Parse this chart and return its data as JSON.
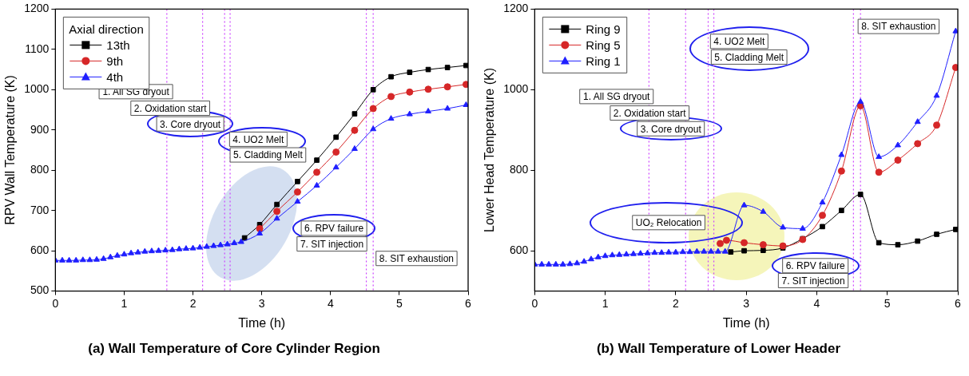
{
  "chart_data": [
    {
      "type": "line",
      "title": "(a) Wall Temperature of Core Cylinder Region",
      "xlabel": "Time (h)",
      "ylabel": "RPV Wall Temperature (K)",
      "xlim": [
        0,
        6
      ],
      "xticks": [
        0,
        1,
        2,
        3,
        4,
        5,
        6
      ],
      "ylim": [
        500,
        1200
      ],
      "yticks": [
        500,
        600,
        700,
        800,
        900,
        1000,
        1100,
        1200
      ],
      "grid": false,
      "legend": "top left",
      "legend_title": "Axial direction",
      "series": [
        {
          "name": "13th",
          "color": "#000000",
          "marker": "square",
          "x": [
            2.75,
            2.97,
            3.22,
            3.52,
            3.8,
            4.08,
            4.35,
            4.62,
            4.88,
            5.15,
            5.42,
            5.7,
            5.97
          ],
          "values": [
            632,
            665,
            715,
            772,
            825,
            882,
            940,
            1000,
            1032,
            1043,
            1050,
            1055,
            1060
          ]
        },
        {
          "name": "9th",
          "color": "#d62728",
          "marker": "circle",
          "x": [
            2.97,
            3.22,
            3.52,
            3.8,
            4.08,
            4.35,
            4.62,
            4.88,
            5.15,
            5.42,
            5.7,
            5.97
          ],
          "values": [
            655,
            698,
            746,
            795,
            845,
            899,
            953,
            983,
            994,
            1001,
            1007,
            1013
          ]
        },
        {
          "name": "4th",
          "color": "#1f1fff",
          "marker": "triangle",
          "x": [
            0,
            0.1,
            0.2,
            0.3,
            0.4,
            0.5,
            0.6,
            0.7,
            0.8,
            0.9,
            1.0,
            1.1,
            1.2,
            1.3,
            1.4,
            1.5,
            1.6,
            1.7,
            1.8,
            1.9,
            2.0,
            2.1,
            2.2,
            2.3,
            2.4,
            2.5,
            2.6,
            2.7,
            2.97,
            3.22,
            3.52,
            3.8,
            4.08,
            4.35,
            4.62,
            4.88,
            5.15,
            5.42,
            5.7,
            5.97
          ],
          "values": [
            576,
            576,
            576,
            576,
            577,
            577,
            578,
            580,
            584,
            588,
            591,
            594,
            596,
            598,
            599,
            600,
            601,
            602,
            604,
            605,
            606,
            608,
            610,
            612,
            614,
            616,
            619,
            622,
            643,
            680,
            722,
            762,
            807,
            853,
            902,
            928,
            939,
            946,
            953,
            962
          ]
        }
      ],
      "ref_lines": [
        {
          "axis": "x",
          "value": 1.62,
          "color": "#cc44ff",
          "line_style": "dotted"
        },
        {
          "axis": "x",
          "value": 2.14,
          "color": "#cc44ff",
          "line_style": "dotted"
        },
        {
          "axis": "x",
          "value": 2.46,
          "color": "#cc44ff",
          "line_style": "dotted"
        },
        {
          "axis": "x",
          "value": 2.54,
          "color": "#cc44ff",
          "line_style": "dotted"
        },
        {
          "axis": "x",
          "value": 4.52,
          "color": "#cc44ff",
          "line_style": "dotted"
        },
        {
          "axis": "x",
          "value": 4.62,
          "color": "#cc44ff",
          "line_style": "dotted"
        }
      ],
      "annotations": [
        "1. All SG dryout",
        "2. Oxidation start",
        "3. Core dryout",
        "4. UO2 Melt",
        "5. Cladding Melt",
        "6. RPV failure",
        "7. SIT injection",
        "8. SIT exhaustion"
      ]
    },
    {
      "type": "line",
      "title": "(b) Wall Temperature of Lower Header",
      "xlabel": "Time (h)",
      "ylabel": "Lower Head Temperature (K)",
      "xlim": [
        0,
        6
      ],
      "xticks": [
        0,
        1,
        2,
        3,
        4,
        5,
        6
      ],
      "ylim": [
        500,
        1200
      ],
      "yticks": [
        600,
        800,
        1000,
        1200
      ],
      "grid": false,
      "legend": "top left",
      "series": [
        {
          "name": "Ring 9",
          "color": "#000000",
          "marker": "square",
          "x": [
            2.78,
            2.97,
            3.24,
            3.52,
            3.8,
            4.08,
            4.35,
            4.62,
            4.88,
            5.15,
            5.43,
            5.7,
            5.97
          ],
          "values": [
            597,
            600,
            601,
            607,
            630,
            660,
            700,
            740,
            620,
            615,
            624,
            641,
            653
          ]
        },
        {
          "name": "Ring 5",
          "color": "#d62728",
          "marker": "circle",
          "x": [
            2.63,
            2.72,
            2.97,
            3.24,
            3.52,
            3.8,
            4.08,
            4.35,
            4.62,
            4.88,
            5.15,
            5.43,
            5.7,
            5.97
          ],
          "values": [
            618,
            626,
            620,
            615,
            612,
            628,
            688,
            798,
            960,
            795,
            825,
            866,
            912,
            1055
          ]
        },
        {
          "name": "Ring 1",
          "color": "#1f1fff",
          "marker": "triangle",
          "x": [
            0,
            0.1,
            0.2,
            0.3,
            0.4,
            0.5,
            0.6,
            0.7,
            0.8,
            0.9,
            1.0,
            1.1,
            1.2,
            1.3,
            1.4,
            1.5,
            1.6,
            1.7,
            1.8,
            1.9,
            2.0,
            2.1,
            2.2,
            2.3,
            2.4,
            2.5,
            2.6,
            2.7,
            2.97,
            3.24,
            3.52,
            3.8,
            4.08,
            4.35,
            4.62,
            4.88,
            5.15,
            5.43,
            5.7,
            5.97
          ],
          "values": [
            566,
            566,
            566,
            566,
            566,
            567,
            569,
            573,
            579,
            584,
            587,
            589,
            590,
            591,
            592,
            593,
            594,
            595,
            595,
            596,
            596,
            597,
            597,
            598,
            598,
            598,
            598,
            598,
            713,
            697,
            658,
            655,
            720,
            838,
            970,
            833,
            862,
            920,
            985,
            1145
          ]
        }
      ],
      "ref_lines": [
        {
          "axis": "x",
          "value": 1.62,
          "color": "#cc44ff",
          "line_style": "dotted"
        },
        {
          "axis": "x",
          "value": 2.14,
          "color": "#cc44ff",
          "line_style": "dotted"
        },
        {
          "axis": "x",
          "value": 2.46,
          "color": "#cc44ff",
          "line_style": "dotted"
        },
        {
          "axis": "x",
          "value": 2.54,
          "color": "#cc44ff",
          "line_style": "dotted"
        },
        {
          "axis": "x",
          "value": 4.52,
          "color": "#cc44ff",
          "line_style": "dotted"
        },
        {
          "axis": "x",
          "value": 4.62,
          "color": "#cc44ff",
          "line_style": "dotted"
        }
      ],
      "annotations": [
        "1. All SG dryout",
        "2. Oxidation start",
        "3. Core dryout",
        "4. UO2 Melt",
        "5. Cladding Melt",
        "UO₂ Relocation",
        "6. RPV failure",
        "7. SIT injection",
        "8. SIT exhaustion"
      ]
    }
  ]
}
